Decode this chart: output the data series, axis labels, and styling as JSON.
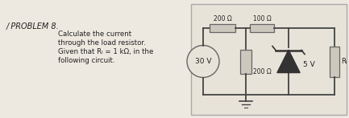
{
  "title_mark": "✓",
  "title_text": "PROBLEM 8.",
  "text_lines": [
    "Calculate the current",
    "through the load resistor.",
    "Given that Rₗ = 1 kΩ, in the",
    "following circuit."
  ],
  "bg_color": "#ede9e0",
  "box_bg": "#e8e3d8",
  "wire_color": "#444444",
  "comp_color": "#666666",
  "text_color": "#222222",
  "label_200_top": "200 Ω",
  "label_100_top": "100 Ω",
  "label_200_mid": "200 Ω",
  "label_5V": "5 V",
  "label_30V": "30 V",
  "label_RL": "Rₗ"
}
